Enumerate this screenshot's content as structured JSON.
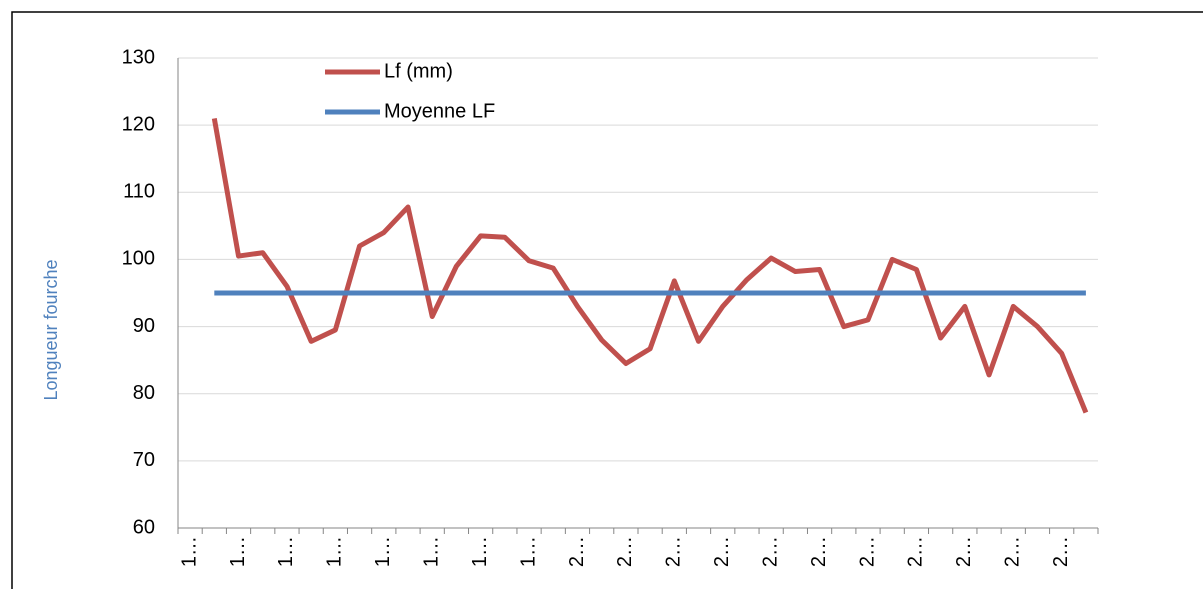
{
  "chart_data": {
    "type": "line",
    "y_label": "Longueur fourche",
    "categories": [
      "1…",
      null,
      "1…",
      null,
      "1…",
      null,
      "1…",
      null,
      "1…",
      null,
      "1…",
      null,
      "1…",
      null,
      "1…",
      null,
      "2…",
      null,
      "2…",
      null,
      "2…",
      null,
      "2…",
      null,
      "2…",
      null,
      "2…",
      null,
      "2…",
      null,
      "2…",
      null,
      "2…",
      null,
      "2…",
      null,
      "2…",
      null
    ],
    "series": [
      {
        "name": "Lf (mm)",
        "color": "#c0504d",
        "values": [
          null,
          121,
          100.5,
          101,
          96,
          87.8,
          89.5,
          102,
          104,
          107.8,
          91.5,
          99,
          103.5,
          103.3,
          99.8,
          98.7,
          93,
          88,
          84.5,
          86.7,
          96.8,
          87.8,
          93,
          97,
          100.2,
          98.2,
          98.5,
          90,
          91,
          100,
          98.5,
          88.3,
          93,
          82.8,
          93,
          90,
          86,
          77.2
        ]
      },
      {
        "name": "Moyenne LF",
        "color": "#4f81bd",
        "values": [
          null,
          95,
          95,
          95,
          95,
          95,
          95,
          95,
          95,
          95,
          95,
          95,
          95,
          95,
          95,
          95,
          95,
          95,
          95,
          95,
          95,
          95,
          95,
          95,
          95,
          95,
          95,
          95,
          95,
          95,
          95,
          95,
          95,
          95,
          95,
          95,
          95,
          95
        ]
      }
    ],
    "ylim": [
      60,
      130
    ],
    "yticks": [
      60,
      70,
      80,
      90,
      100,
      110,
      120,
      130
    ],
    "grid": true
  }
}
